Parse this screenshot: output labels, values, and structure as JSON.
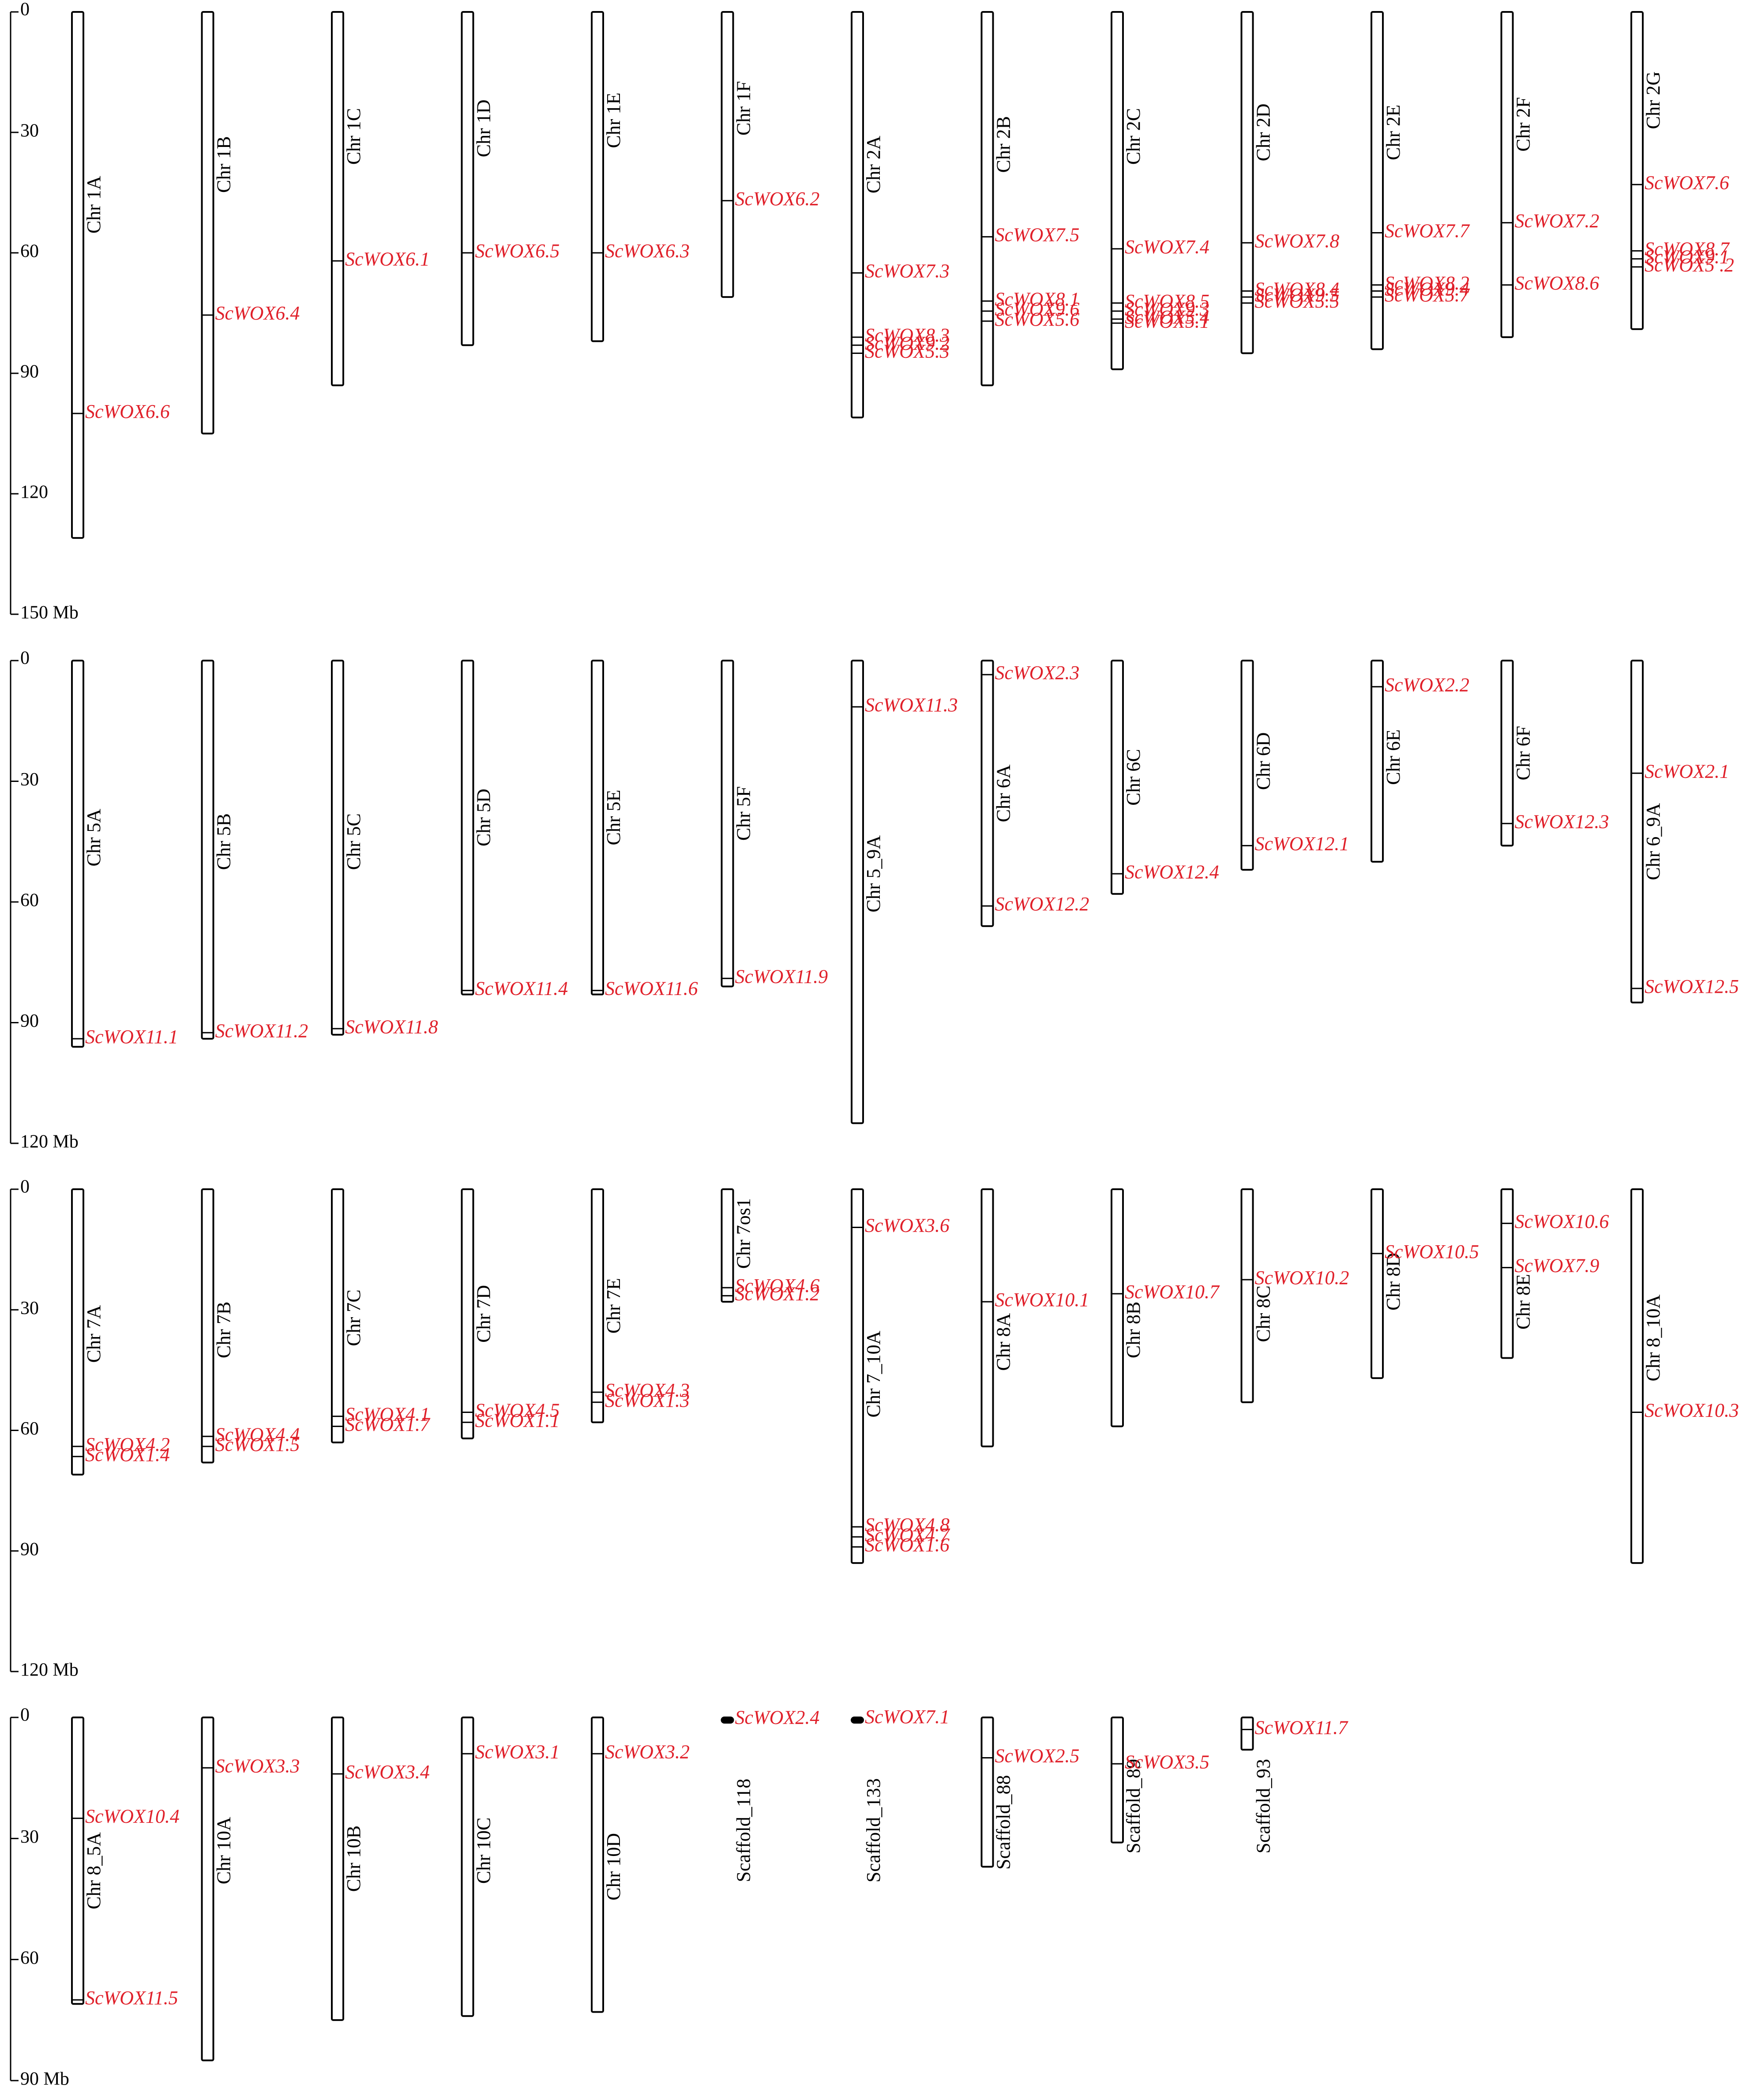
{
  "colors": {
    "gene_label": "#e0202a",
    "line": "#000000",
    "background": "#ffffff"
  },
  "panels": [
    {
      "scale": {
        "ticks": [
          "0",
          "30",
          "60",
          "90",
          "120",
          "150 Mb"
        ],
        "max_mb": 150
      },
      "chromosomes": [
        {
          "name": "Chr 1A",
          "length": 131,
          "label_at": 48,
          "genes": [
            {
              "name": "ScWOX6.6",
              "pos": 100
            }
          ]
        },
        {
          "name": "Chr 1B",
          "length": 105,
          "label_at": 38,
          "genes": [
            {
              "name": "ScWOX6.4",
              "pos": 75.5
            }
          ]
        },
        {
          "name": "Chr 1C",
          "length": 93,
          "label_at": 31,
          "genes": [
            {
              "name": "ScWOX6.1",
              "pos": 62
            }
          ]
        },
        {
          "name": "Chr 1D",
          "length": 83,
          "label_at": 29,
          "genes": [
            {
              "name": "ScWOX6.5",
              "pos": 60
            }
          ]
        },
        {
          "name": "Chr 1E",
          "length": 82,
          "label_at": 27,
          "genes": [
            {
              "name": "ScWOX6.3",
              "pos": 60
            }
          ]
        },
        {
          "name": "Chr 1F",
          "length": 71,
          "label_at": 24,
          "genes": [
            {
              "name": "ScWOX6.2",
              "pos": 47
            }
          ]
        },
        {
          "name": "Chr 2A",
          "length": 101,
          "label_at": 38,
          "genes": [
            {
              "name": "ScWOX7.3",
              "pos": 65
            },
            {
              "name": "ScWOX8.3",
              "pos": 81
            },
            {
              "name": "ScWOX9.2",
              "pos": 83
            },
            {
              "name": "ScWOX5.3",
              "pos": 85
            }
          ]
        },
        {
          "name": "Chr 2B",
          "length": 93,
          "label_at": 33,
          "genes": [
            {
              "name": "ScWOX7.5",
              "pos": 56
            },
            {
              "name": "ScWOX8.1",
              "pos": 72
            },
            {
              "name": "ScWOX9.6",
              "pos": 74.5
            },
            {
              "name": "ScWOX5.6",
              "pos": 77
            }
          ]
        },
        {
          "name": "Chr 2C",
          "length": 89,
          "label_at": 31,
          "genes": [
            {
              "name": "ScWOX7.4",
              "pos": 59
            },
            {
              "name": "ScWOX8.5",
              "pos": 72.5
            },
            {
              "name": "ScWOX9.3",
              "pos": 74.5
            },
            {
              "name": "ScWOX5.4",
              "pos": 76.5
            },
            {
              "name": "ScWOX5.1",
              "pos": 77.5
            }
          ]
        },
        {
          "name": "Chr 2D",
          "length": 85,
          "label_at": 30,
          "genes": [
            {
              "name": "ScWOX7.8",
              "pos": 57.5
            },
            {
              "name": "ScWOX8.4",
              "pos": 69.5
            },
            {
              "name": "ScWOX9.5",
              "pos": 71
            },
            {
              "name": "ScWOX5.5",
              "pos": 72.5
            }
          ]
        },
        {
          "name": "Chr 2E",
          "length": 84,
          "label_at": 30,
          "genes": [
            {
              "name": "ScWOX7.7",
              "pos": 55
            },
            {
              "name": "ScWOX8.2",
              "pos": 68
            },
            {
              "name": "ScWOX9.4",
              "pos": 69.5
            },
            {
              "name": "ScWOX5.7",
              "pos": 71
            }
          ]
        },
        {
          "name": "Chr 2F",
          "length": 81,
          "label_at": 28,
          "genes": [
            {
              "name": "ScWOX7.2",
              "pos": 52.5
            },
            {
              "name": "ScWOX8.6",
              "pos": 68
            }
          ]
        },
        {
          "name": "Chr 2G",
          "length": 79,
          "label_at": 22,
          "genes": [
            {
              "name": "ScWOX7.6",
              "pos": 43
            },
            {
              "name": "ScWOX8.7",
              "pos": 59.5
            },
            {
              "name": "ScWOX9.1",
              "pos": 61.5
            },
            {
              "name": "ScWOX5 .2",
              "pos": 63.5
            }
          ]
        }
      ]
    },
    {
      "scale": {
        "ticks": [
          "0",
          "30",
          "60",
          "90",
          "120 Mb"
        ],
        "max_mb": 120
      },
      "chromosomes": [
        {
          "name": "Chr 5A",
          "length": 96,
          "label_at": 44,
          "genes": [
            {
              "name": "ScWOX11.1",
              "pos": 94
            }
          ]
        },
        {
          "name": "Chr 5B",
          "length": 94,
          "label_at": 45,
          "genes": [
            {
              "name": "ScWOX11.2",
              "pos": 92.5
            }
          ]
        },
        {
          "name": "Chr 5C",
          "length": 93,
          "label_at": 45,
          "genes": [
            {
              "name": "ScWOX11.8",
              "pos": 91.5
            }
          ]
        },
        {
          "name": "Chr 5D",
          "length": 83,
          "label_at": 39,
          "genes": [
            {
              "name": "ScWOX11.4",
              "pos": 82
            }
          ]
        },
        {
          "name": "Chr 5E",
          "length": 83,
          "label_at": 39,
          "genes": [
            {
              "name": "ScWOX11.6",
              "pos": 82
            }
          ]
        },
        {
          "name": "Chr 5F",
          "length": 81,
          "label_at": 38,
          "genes": [
            {
              "name": "ScWOX11.9",
              "pos": 79
            }
          ]
        },
        {
          "name": "Chr 5_9A",
          "length": 115,
          "label_at": 53,
          "genes": [
            {
              "name": "ScWOX11.3",
              "pos": 11.5
            }
          ]
        },
        {
          "name": "Chr 6A",
          "length": 66,
          "label_at": 33,
          "genes": [
            {
              "name": "ScWOX2.3",
              "pos": 3.5
            },
            {
              "name": "ScWOX12.2",
              "pos": 61
            }
          ]
        },
        {
          "name": "Chr 6C",
          "length": 58,
          "label_at": 29,
          "genes": [
            {
              "name": "ScWOX12.4",
              "pos": 53
            }
          ]
        },
        {
          "name": "Chr 6D",
          "length": 52,
          "label_at": 25,
          "genes": [
            {
              "name": "ScWOX12.1",
              "pos": 46
            }
          ]
        },
        {
          "name": "Chr 6E",
          "length": 50,
          "label_at": 24,
          "genes": [
            {
              "name": "ScWOX2.2",
              "pos": 6.5
            }
          ]
        },
        {
          "name": "Chr 6F",
          "length": 46,
          "label_at": 23,
          "genes": [
            {
              "name": "ScWOX12.3",
              "pos": 40.5
            }
          ]
        },
        {
          "name": "Chr 6_9A",
          "length": 85,
          "label_at": 45,
          "genes": [
            {
              "name": "ScWOX2.1",
              "pos": 28
            },
            {
              "name": "ScWOX12.5",
              "pos": 81.5
            }
          ]
        }
      ]
    },
    {
      "scale": {
        "ticks": [
          "0",
          "30",
          "60",
          "90",
          "120 Mb"
        ],
        "max_mb": 120
      },
      "chromosomes": [
        {
          "name": "Chr 7A",
          "length": 71,
          "label_at": 36,
          "genes": [
            {
              "name": "ScWOX4.2",
              "pos": 64
            },
            {
              "name": "ScWOX1.4",
              "pos": 66.5
            }
          ]
        },
        {
          "name": "Chr 7B",
          "length": 68,
          "label_at": 35,
          "genes": [
            {
              "name": "ScWOX4.4",
              "pos": 61.5
            },
            {
              "name": "ScWOX1.5",
              "pos": 64
            }
          ]
        },
        {
          "name": "Chr 7C",
          "length": 63,
          "label_at": 32,
          "genes": [
            {
              "name": "ScWOX4.1",
              "pos": 56.5
            },
            {
              "name": "ScWOX1.7",
              "pos": 59
            }
          ]
        },
        {
          "name": "Chr 7D",
          "length": 62,
          "label_at": 31,
          "genes": [
            {
              "name": "ScWOX4.5",
              "pos": 55.5
            },
            {
              "name": "ScWOX1.1",
              "pos": 58
            }
          ]
        },
        {
          "name": "Chr 7E",
          "length": 58,
          "label_at": 29,
          "genes": [
            {
              "name": "ScWOX4.3",
              "pos": 50.5
            },
            {
              "name": "ScWOX1.3",
              "pos": 53
            }
          ]
        },
        {
          "name": "Chr 7os1",
          "length": 28,
          "label_at": 11,
          "genes": [
            {
              "name": "ScWOX4.6",
              "pos": 24.5
            },
            {
              "name": "ScWOX1.2",
              "pos": 26.5
            }
          ]
        },
        {
          "name": "Chr 7_10A",
          "length": 93,
          "label_at": 46,
          "genes": [
            {
              "name": "ScWOX3.6",
              "pos": 9.5
            },
            {
              "name": "ScWOX4.8",
              "pos": 84
            },
            {
              "name": "ScWOX4.7",
              "pos": 86.5
            },
            {
              "name": "ScWOX1.6",
              "pos": 89
            }
          ]
        },
        {
          "name": "Chr 8A",
          "length": 64,
          "label_at": 38,
          "genes": [
            {
              "name": "ScWOX10.1",
              "pos": 28
            }
          ]
        },
        {
          "name": "Chr 8B",
          "length": 59,
          "label_at": 35,
          "genes": [
            {
              "name": "ScWOX10.7",
              "pos": 26
            }
          ]
        },
        {
          "name": "Chr 8C",
          "length": 53,
          "label_at": 31,
          "genes": [
            {
              "name": "ScWOX10.2",
              "pos": 22.5
            }
          ]
        },
        {
          "name": "Chr 8D",
          "length": 47,
          "label_at": 23,
          "genes": [
            {
              "name": "ScWOX10.5",
              "pos": 16
            }
          ]
        },
        {
          "name": "Chr 8E",
          "length": 42,
          "label_at": 28,
          "genes": [
            {
              "name": "ScWOX10.6",
              "pos": 8.5
            },
            {
              "name": "ScWOX7.9",
              "pos": 19.5
            }
          ]
        },
        {
          "name": "Chr 8_10A",
          "length": 93,
          "label_at": 37,
          "genes": [
            {
              "name": "ScWOX10.3",
              "pos": 55.5
            }
          ]
        }
      ]
    },
    {
      "scale": {
        "ticks": [
          "0",
          "30",
          "60",
          "90 Mb"
        ],
        "max_mb": 90
      },
      "chromosomes": [
        {
          "name": "Chr 8_5A",
          "length": 71,
          "label_at": 38,
          "genes": [
            {
              "name": "ScWOX10.4",
              "pos": 25
            },
            {
              "name": "ScWOX11.5",
              "pos": 70
            }
          ]
        },
        {
          "name": "Chr 10A",
          "length": 85,
          "label_at": 33,
          "genes": [
            {
              "name": "ScWOX3.3",
              "pos": 12.5
            }
          ]
        },
        {
          "name": "Chr 10B",
          "length": 75,
          "label_at": 35,
          "genes": [
            {
              "name": "ScWOX3.4",
              "pos": 14
            }
          ]
        },
        {
          "name": "Chr 10C",
          "length": 74,
          "label_at": 33,
          "genes": [
            {
              "name": "ScWOX3.1",
              "pos": 9
            }
          ]
        },
        {
          "name": "Chr 10D",
          "length": 73,
          "label_at": 37,
          "genes": [
            {
              "name": "ScWOX3.2",
              "pos": 9
            }
          ]
        },
        {
          "name": "Scaffold_118",
          "length": 1,
          "label_at": 28,
          "genes": [
            {
              "name": "ScWOX2.4",
              "pos": 0.5
            }
          ]
        },
        {
          "name": "Scaffold_133",
          "length": 0.6,
          "label_at": 28,
          "genes": [
            {
              "name": "ScWOX7.1",
              "pos": 0.3
            }
          ]
        },
        {
          "name": "Scaffold_88",
          "length": 37,
          "label_at": 26,
          "genes": [
            {
              "name": "ScWOX2.5",
              "pos": 10
            }
          ]
        },
        {
          "name": "Scaffold_89",
          "length": 31,
          "label_at": 22,
          "genes": [
            {
              "name": "ScWOX3.5",
              "pos": 11.5
            }
          ]
        },
        {
          "name": "Scaffold_93",
          "length": 8,
          "label_at": 22,
          "genes": [
            {
              "name": "ScWOX11.7",
              "pos": 3
            }
          ]
        }
      ]
    }
  ]
}
